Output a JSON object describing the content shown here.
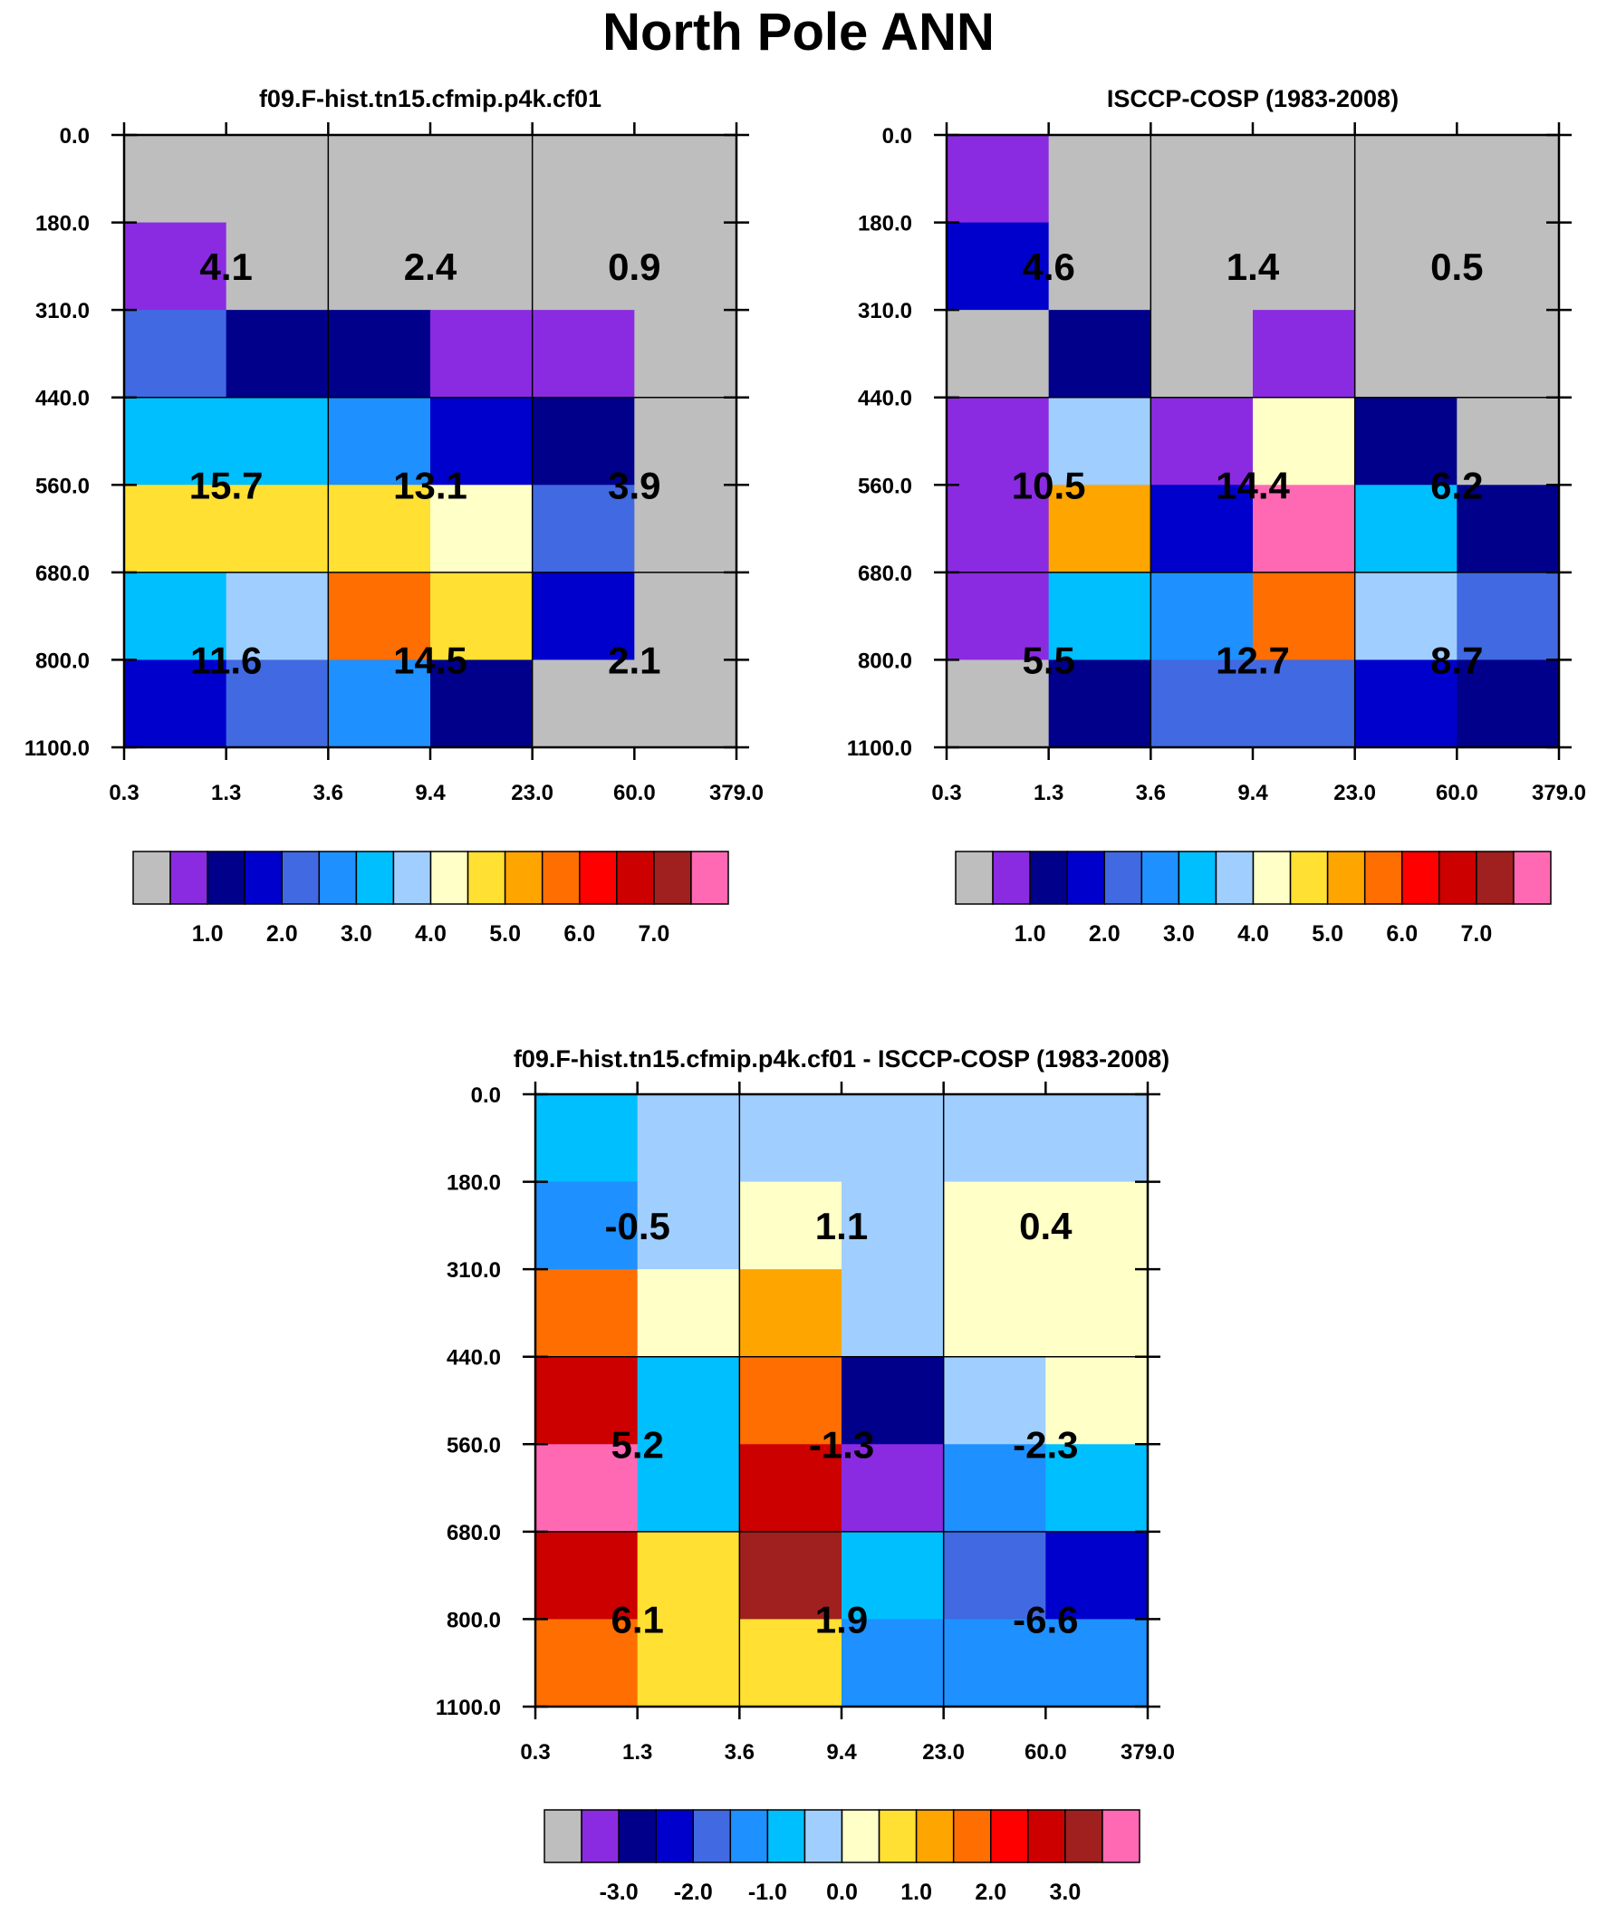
{
  "title": "North Pole ANN",
  "colors": {
    "palette": [
      "#bebebe",
      "#8a2be2",
      "#00008b",
      "#0000cd",
      "#4169e1",
      "#1e90ff",
      "#00bfff",
      "#a0cfff",
      "#ffffc8",
      "#ffe033",
      "#ffa500",
      "#ff6e00",
      "#ff0000",
      "#cd0000",
      "#a02020",
      "#ff69b4"
    ],
    "grid": "#000000",
    "text": "#000000"
  },
  "chart_data": [
    {
      "type": "heatmap",
      "id": "model",
      "title": "f09.F-hist.tn15.cfmip.p4k.cf01",
      "x_tick_labels": [
        "0.3",
        "1.3",
        "3.6",
        "9.4",
        "23.0",
        "60.0",
        "379.0"
      ],
      "y_tick_labels": [
        "0.0",
        "180.0",
        "310.0",
        "440.0",
        "560.0",
        "680.0",
        "800.0",
        "1100.0"
      ],
      "cell_colors": [
        [
          0,
          0,
          0,
          0,
          0,
          0
        ],
        [
          1,
          0,
          0,
          0,
          0,
          0
        ],
        [
          4,
          2,
          2,
          1,
          1,
          0
        ],
        [
          6,
          6,
          5,
          3,
          2,
          0
        ],
        [
          9,
          9,
          9,
          8,
          4,
          0
        ],
        [
          6,
          7,
          11,
          9,
          3,
          0
        ],
        [
          3,
          4,
          5,
          2,
          0,
          0
        ]
      ],
      "summary_values": [
        [
          "4.1",
          "2.4",
          "0.9"
        ],
        [
          "15.7",
          "13.1",
          "3.9"
        ],
        [
          "11.6",
          "14.5",
          "2.1"
        ]
      ],
      "colorbar": {
        "tick_labels": [
          "1.0",
          "2.0",
          "3.0",
          "4.0",
          "5.0",
          "6.0",
          "7.0"
        ],
        "levels": 16
      }
    },
    {
      "type": "heatmap",
      "id": "obs",
      "title": "ISCCP-COSP (1983-2008)",
      "x_tick_labels": [
        "0.3",
        "1.3",
        "3.6",
        "9.4",
        "23.0",
        "60.0",
        "379.0"
      ],
      "y_tick_labels": [
        "0.0",
        "180.0",
        "310.0",
        "440.0",
        "560.0",
        "680.0",
        "800.0",
        "1100.0"
      ],
      "cell_colors": [
        [
          1,
          0,
          0,
          0,
          0,
          0
        ],
        [
          3,
          0,
          0,
          0,
          0,
          0
        ],
        [
          0,
          2,
          0,
          1,
          0,
          0
        ],
        [
          1,
          7,
          1,
          8,
          2,
          0
        ],
        [
          1,
          10,
          3,
          15,
          6,
          2
        ],
        [
          1,
          6,
          5,
          11,
          7,
          4
        ],
        [
          0,
          2,
          4,
          4,
          3,
          2
        ]
      ],
      "summary_values": [
        [
          "4.6",
          "1.4",
          "0.5"
        ],
        [
          "10.5",
          "14.4",
          "6.2"
        ],
        [
          "5.5",
          "12.7",
          "8.7"
        ]
      ],
      "colorbar": {
        "tick_labels": [
          "1.0",
          "2.0",
          "3.0",
          "4.0",
          "5.0",
          "6.0",
          "7.0"
        ],
        "levels": 16
      }
    },
    {
      "type": "heatmap",
      "id": "diff",
      "title": "f09.F-hist.tn15.cfmip.p4k.cf01 - ISCCP-COSP (1983-2008)",
      "x_tick_labels": [
        "0.3",
        "1.3",
        "3.6",
        "9.4",
        "23.0",
        "60.0",
        "379.0"
      ],
      "y_tick_labels": [
        "0.0",
        "180.0",
        "310.0",
        "440.0",
        "560.0",
        "680.0",
        "800.0",
        "1100.0"
      ],
      "cell_colors": [
        [
          6,
          7,
          7,
          7,
          7,
          7
        ],
        [
          5,
          7,
          8,
          7,
          8,
          8
        ],
        [
          11,
          8,
          10,
          7,
          8,
          8
        ],
        [
          13,
          6,
          11,
          2,
          7,
          8
        ],
        [
          15,
          6,
          13,
          1,
          5,
          6
        ],
        [
          13,
          9,
          14,
          6,
          4,
          3
        ],
        [
          11,
          9,
          9,
          5,
          5,
          5
        ]
      ],
      "summary_values": [
        [
          "-0.5",
          "1.1",
          "0.4"
        ],
        [
          "5.2",
          "-1.3",
          "-2.3"
        ],
        [
          "6.1",
          "1.9",
          "-6.6"
        ]
      ],
      "colorbar": {
        "tick_labels": [
          "-3.0",
          "-2.0",
          "-1.0",
          "0.0",
          "1.0",
          "2.0",
          "3.0"
        ],
        "levels": 16
      }
    }
  ]
}
